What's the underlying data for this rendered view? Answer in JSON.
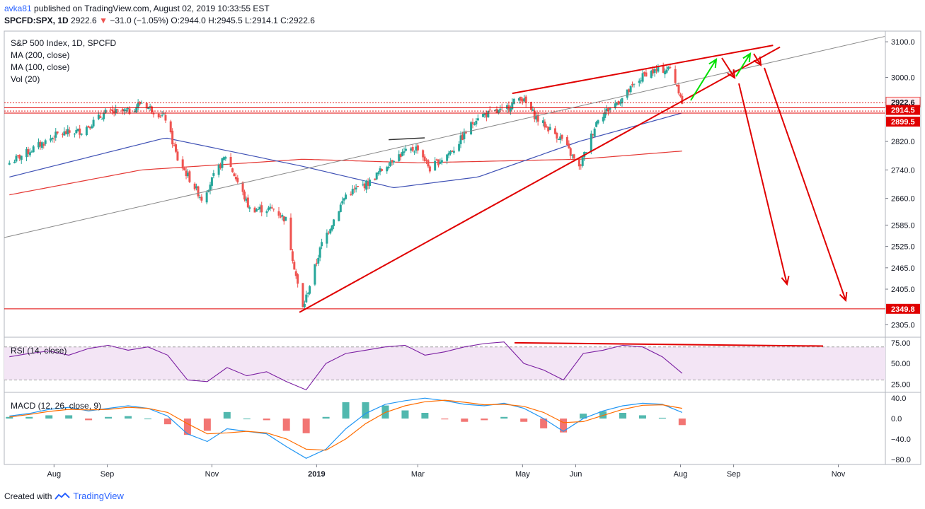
{
  "header": {
    "user": "avka81",
    "published": "published on TradingView.com, August 02, 2019 10:33:55 EST",
    "symbol": "SPCFD:SPX, 1D",
    "last": "2922.6",
    "change_arrow": "▼",
    "change": "−31.0 (−1.05%)",
    "ohlc": "O:2944.0  H:2945.5  L:2914.1  C:2922.6"
  },
  "legend": {
    "title": "S&P 500 Index, 1D, SPCFD",
    "ma200": "MA (200, close)",
    "ma100": "MA (100, close)",
    "vol": "Vol (20)",
    "rsi": "RSI (14, close)",
    "macd": "MACD (12, 26, close, 9)"
  },
  "footer": {
    "created": "Created with",
    "brand": "TradingView"
  },
  "colors": {
    "up": "#26a69a",
    "down": "#ef5350",
    "ma200": "#e53935",
    "ma100": "#3f51b5",
    "trend": "#e00000",
    "rsi": "#7b1fa2",
    "macd": "#2196f3",
    "signal": "#ff6d00"
  },
  "chart_data": [
    {
      "type": "candlestick",
      "symbol": "SPCFD:SPX",
      "ylim": [
        2270,
        3130
      ],
      "y_ticks": [
        "3100.0",
        "3000.0",
        "2820.0",
        "2740.0",
        "2660.0",
        "2585.0",
        "2525.0",
        "2465.0",
        "2405.0",
        "2349.8",
        "2305.0"
      ],
      "price_labels": [
        "2922.6",
        "2914.5",
        "2899.5",
        "2349.8"
      ],
      "x_ticks": [
        "Aug",
        "Sep",
        "Nov",
        "2019",
        "Mar",
        "May",
        "Jun",
        "Aug",
        "Sep",
        "Nov"
      ],
      "close_path": [
        [
          "2018-07-06",
          2760
        ],
        [
          "2018-07-20",
          2800
        ],
        [
          "2018-08-03",
          2840
        ],
        [
          "2018-08-17",
          2850
        ],
        [
          "2018-08-31",
          2900
        ],
        [
          "2018-09-14",
          2905
        ],
        [
          "2018-09-21",
          2930
        ],
        [
          "2018-10-05",
          2885
        ],
        [
          "2018-10-12",
          2770
        ],
        [
          "2018-10-26",
          2660
        ],
        [
          "2018-11-09",
          2780
        ],
        [
          "2018-11-23",
          2630
        ],
        [
          "2018-12-07",
          2630
        ],
        [
          "2018-12-14",
          2600
        ],
        [
          "2018-12-21",
          2416
        ],
        [
          "2018-12-24",
          2351
        ],
        [
          "2019-01-04",
          2532
        ],
        [
          "2019-01-18",
          2670
        ],
        [
          "2019-02-01",
          2706
        ],
        [
          "2019-02-15",
          2775
        ],
        [
          "2019-03-01",
          2803
        ],
        [
          "2019-03-08",
          2743
        ],
        [
          "2019-03-22",
          2800
        ],
        [
          "2019-04-05",
          2892
        ],
        [
          "2019-04-19",
          2905
        ],
        [
          "2019-04-30",
          2945
        ],
        [
          "2019-05-10",
          2881
        ],
        [
          "2019-05-24",
          2826
        ],
        [
          "2019-06-03",
          2744
        ],
        [
          "2019-06-14",
          2887
        ],
        [
          "2019-06-28",
          2941
        ],
        [
          "2019-07-12",
          3013
        ],
        [
          "2019-07-26",
          3025
        ],
        [
          "2019-08-01",
          2953
        ],
        [
          "2019-08-02",
          2922.6
        ]
      ],
      "ma200_path": [
        [
          "2018-07-06",
          2670
        ],
        [
          "2018-09-21",
          2740
        ],
        [
          "2018-12-24",
          2770
        ],
        [
          "2019-03-01",
          2760
        ],
        [
          "2019-06-03",
          2770
        ],
        [
          "2019-08-02",
          2793
        ]
      ],
      "ma100_path": [
        [
          "2018-07-06",
          2720
        ],
        [
          "2018-10-05",
          2830
        ],
        [
          "2018-12-24",
          2750
        ],
        [
          "2019-02-15",
          2690
        ],
        [
          "2019-04-05",
          2720
        ],
        [
          "2019-06-03",
          2820
        ],
        [
          "2019-08-02",
          2900
        ]
      ],
      "horizontal_levels": [
        2922.6,
        2914.5,
        2899.5,
        2349.8
      ]
    },
    {
      "type": "line",
      "name": "RSI (14, close)",
      "ylim": [
        15,
        80
      ],
      "y_ticks": [
        "75.00",
        "50.00",
        "25.00"
      ],
      "bands": [
        30,
        70
      ],
      "values": [
        58,
        62,
        65,
        60,
        68,
        72,
        66,
        70,
        60,
        30,
        28,
        45,
        35,
        40,
        28,
        18,
        50,
        62,
        66,
        70,
        72,
        60,
        64,
        70,
        74,
        76,
        50,
        42,
        30,
        62,
        66,
        72,
        70,
        58,
        38
      ]
    },
    {
      "type": "bar",
      "name": "MACD (12, 26, close, 9)",
      "ylim": [
        -90,
        50
      ],
      "y_ticks": [
        "40.0",
        "0.0",
        "−40.0",
        "−80.0"
      ],
      "macd": [
        5,
        10,
        18,
        22,
        15,
        20,
        25,
        20,
        5,
        -30,
        -45,
        -20,
        -25,
        -30,
        -55,
        -78,
        -60,
        -20,
        10,
        28,
        35,
        40,
        35,
        28,
        25,
        30,
        20,
        0,
        -25,
        0,
        15,
        25,
        30,
        28,
        12
      ],
      "signal": [
        3,
        8,
        14,
        18,
        17,
        18,
        22,
        20,
        12,
        -10,
        -30,
        -28,
        -25,
        -28,
        -40,
        -60,
        -62,
        -40,
        -10,
        12,
        25,
        33,
        36,
        32,
        27,
        28,
        24,
        12,
        -8,
        -6,
        6,
        18,
        26,
        27,
        20
      ]
    }
  ]
}
